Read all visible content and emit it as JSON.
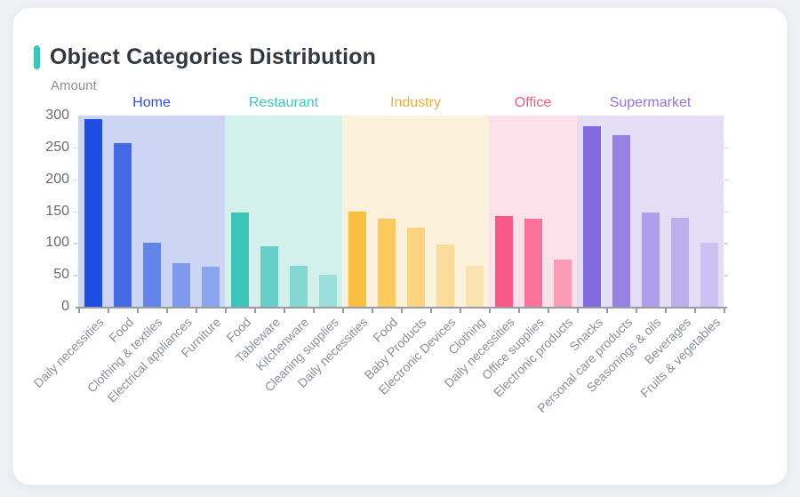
{
  "card": {
    "title": "Object Categories Distribution",
    "accent_color": "#41c4b7",
    "background": "#ffffff",
    "page_background": "#eef0f4"
  },
  "chart_data": {
    "type": "bar",
    "title": "Object Categories Distribution",
    "xlabel": "",
    "ylabel": "Amount",
    "ylim": [
      0,
      300
    ],
    "y_ticks": [
      0,
      50,
      100,
      150,
      200,
      250,
      300
    ],
    "grid": false,
    "legend_position": "top-inside",
    "axis_color": "#9a9ca4",
    "groups": [
      {
        "name": "Home",
        "label_color": "#2b50e3",
        "panel_color": "#ccd6f4",
        "bars": [
          {
            "category": "Daily necessities",
            "value": 295,
            "color": "#1d4de1"
          },
          {
            "category": "Food",
            "value": 257,
            "color": "#4569e4"
          },
          {
            "category": "Clothing & textiles",
            "value": 101,
            "color": "#6384e9"
          },
          {
            "category": "Electrical appliances",
            "value": 68,
            "color": "#7f9aed"
          },
          {
            "category": "Furniture",
            "value": 63,
            "color": "#8ba4ef"
          }
        ]
      },
      {
        "name": "Restaurant",
        "label_color": "#40c8bd",
        "panel_color": "#d4f0ed",
        "bars": [
          {
            "category": "Food",
            "value": 148,
            "color": "#3ec4b9"
          },
          {
            "category": "Tableware",
            "value": 95,
            "color": "#66cfc7"
          },
          {
            "category": "Kitchenware",
            "value": 64,
            "color": "#84d8d1"
          },
          {
            "category": "Cleaning supplies",
            "value": 50,
            "color": "#9bdfda"
          }
        ]
      },
      {
        "name": "Industry",
        "label_color": "#efae3c",
        "panel_color": "#fcf2dc",
        "bars": [
          {
            "category": "Daily necessities",
            "value": 150,
            "color": "#fbbf3f"
          },
          {
            "category": "Food",
            "value": 138,
            "color": "#fbc95e"
          },
          {
            "category": "Baby Products",
            "value": 124,
            "color": "#fbd381"
          },
          {
            "category": "Electronic Devices",
            "value": 98,
            "color": "#fcdc9b"
          },
          {
            "category": "Clothing",
            "value": 64,
            "color": "#fbe3b1"
          }
        ]
      },
      {
        "name": "Office",
        "label_color": "#f8598b",
        "panel_color": "#fce0ea",
        "bars": [
          {
            "category": "Daily necessities",
            "value": 143,
            "color": "#f95989"
          },
          {
            "category": "Office supplies",
            "value": 138,
            "color": "#fa7299"
          },
          {
            "category": "Electronic products",
            "value": 74,
            "color": "#fc9bb6"
          }
        ]
      },
      {
        "name": "Supermarket",
        "label_color": "#8e76e6",
        "panel_color": "#e4dff7",
        "bars": [
          {
            "category": "Snacks",
            "value": 283,
            "color": "#8368de"
          },
          {
            "category": "Personal care products",
            "value": 270,
            "color": "#9781e3"
          },
          {
            "category": "Seasonings & oils",
            "value": 148,
            "color": "#af9fea"
          },
          {
            "category": "Beverages",
            "value": 140,
            "color": "#bcafee"
          },
          {
            "category": "Fruits & vegetables",
            "value": 100,
            "color": "#cbc1f2"
          }
        ]
      }
    ]
  }
}
